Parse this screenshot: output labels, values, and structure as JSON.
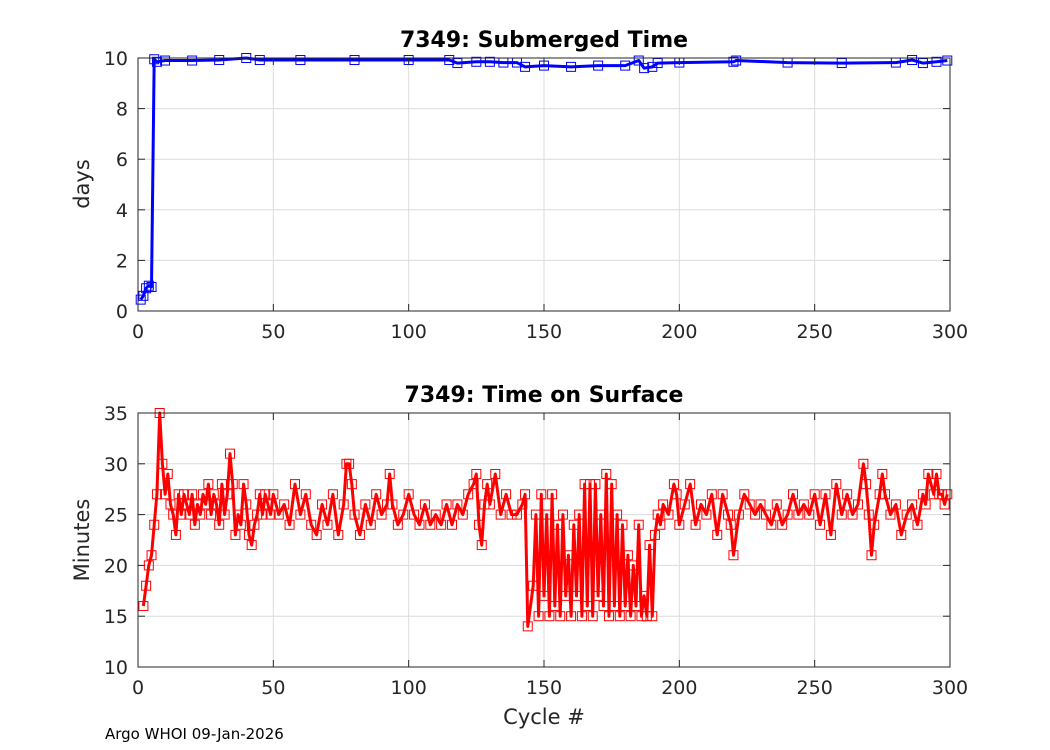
{
  "footer": "Argo WHOI 09-Jan-2026",
  "chart_data": [
    {
      "type": "line",
      "title": "7349: Submerged Time",
      "xlabel": "",
      "ylabel": "days",
      "xlim": [
        0,
        300
      ],
      "ylim": [
        0,
        10
      ],
      "xticks": [
        0,
        50,
        100,
        150,
        200,
        250,
        300
      ],
      "yticks": [
        0,
        2,
        4,
        6,
        8,
        10
      ],
      "grid": true,
      "marker": "square",
      "color": "#0000ff",
      "series": [
        {
          "points": [
            [
              1,
              0.45
            ],
            [
              2,
              0.6
            ],
            [
              3,
              0.9
            ],
            [
              4,
              1.0
            ],
            [
              5,
              0.95
            ],
            [
              6,
              9.95
            ],
            [
              7,
              9.85
            ],
            [
              10,
              9.9
            ],
            [
              20,
              9.9
            ],
            [
              30,
              9.92
            ],
            [
              40,
              10.0
            ],
            [
              45,
              9.92
            ],
            [
              60,
              9.92
            ],
            [
              80,
              9.92
            ],
            [
              100,
              9.92
            ],
            [
              115,
              9.92
            ],
            [
              118,
              9.8
            ],
            [
              125,
              9.85
            ],
            [
              130,
              9.85
            ],
            [
              135,
              9.82
            ],
            [
              140,
              9.82
            ],
            [
              143,
              9.65
            ],
            [
              150,
              9.7
            ],
            [
              160,
              9.65
            ],
            [
              170,
              9.7
            ],
            [
              180,
              9.7
            ],
            [
              185,
              9.9
            ],
            [
              187,
              9.6
            ],
            [
              190,
              9.65
            ],
            [
              192,
              9.8
            ],
            [
              200,
              9.82
            ],
            [
              220,
              9.85
            ],
            [
              221,
              9.9
            ],
            [
              240,
              9.82
            ],
            [
              260,
              9.8
            ],
            [
              280,
              9.82
            ],
            [
              286,
              9.92
            ],
            [
              290,
              9.8
            ],
            [
              295,
              9.85
            ],
            [
              299,
              9.9
            ]
          ]
        }
      ]
    },
    {
      "type": "line",
      "title": "7349: Time on Surface",
      "xlabel": "Cycle #",
      "ylabel": "Minutes",
      "xlim": [
        0,
        300
      ],
      "ylim": [
        10,
        35
      ],
      "xticks": [
        0,
        50,
        100,
        150,
        200,
        250,
        300
      ],
      "yticks": [
        10,
        15,
        20,
        25,
        30,
        35
      ],
      "grid": true,
      "marker": "square",
      "color": "#ff0000",
      "series": [
        {
          "points": [
            [
              2,
              16
            ],
            [
              3,
              18
            ],
            [
              4,
              20
            ],
            [
              5,
              21
            ],
            [
              6,
              24
            ],
            [
              7,
              27
            ],
            [
              8,
              35
            ],
            [
              9,
              30
            ],
            [
              10,
              27
            ],
            [
              11,
              29
            ],
            [
              12,
              26
            ],
            [
              13,
              25
            ],
            [
              14,
              23
            ],
            [
              15,
              27
            ],
            [
              16,
              25
            ],
            [
              17,
              27
            ],
            [
              18,
              26
            ],
            [
              19,
              25
            ],
            [
              20,
              27
            ],
            [
              21,
              24
            ],
            [
              22,
              26
            ],
            [
              23,
              25
            ],
            [
              24,
              27
            ],
            [
              25,
              26
            ],
            [
              26,
              28
            ],
            [
              27,
              25
            ],
            [
              28,
              27
            ],
            [
              29,
              26
            ],
            [
              30,
              24
            ],
            [
              31,
              28
            ],
            [
              32,
              25
            ],
            [
              33,
              27
            ],
            [
              34,
              31
            ],
            [
              35,
              28
            ],
            [
              36,
              23
            ],
            [
              37,
              25
            ],
            [
              38,
              24
            ],
            [
              39,
              28
            ],
            [
              40,
              26
            ],
            [
              41,
              23
            ],
            [
              42,
              22
            ],
            [
              43,
              24
            ],
            [
              44,
              25
            ],
            [
              45,
              27
            ],
            [
              46,
              25
            ],
            [
              47,
              27
            ],
            [
              48,
              26
            ],
            [
              49,
              25
            ],
            [
              50,
              27
            ],
            [
              52,
              25
            ],
            [
              54,
              26
            ],
            [
              56,
              24
            ],
            [
              58,
              28
            ],
            [
              60,
              25
            ],
            [
              62,
              27
            ],
            [
              64,
              24
            ],
            [
              66,
              23
            ],
            [
              68,
              26
            ],
            [
              70,
              24
            ],
            [
              72,
              27
            ],
            [
              74,
              23
            ],
            [
              76,
              26
            ],
            [
              77,
              30
            ],
            [
              78,
              30
            ],
            [
              79,
              28
            ],
            [
              80,
              25
            ],
            [
              82,
              23
            ],
            [
              84,
              26
            ],
            [
              86,
              24
            ],
            [
              88,
              27
            ],
            [
              90,
              25
            ],
            [
              92,
              26
            ],
            [
              93,
              29
            ],
            [
              94,
              26
            ],
            [
              96,
              24
            ],
            [
              98,
              25
            ],
            [
              100,
              27
            ],
            [
              102,
              25
            ],
            [
              104,
              24
            ],
            [
              106,
              26
            ],
            [
              108,
              24
            ],
            [
              110,
              25
            ],
            [
              112,
              24
            ],
            [
              114,
              26
            ],
            [
              116,
              24
            ],
            [
              118,
              26
            ],
            [
              120,
              25
            ],
            [
              122,
              27
            ],
            [
              124,
              28
            ],
            [
              125,
              29
            ],
            [
              126,
              24
            ],
            [
              127,
              22
            ],
            [
              128,
              26
            ],
            [
              129,
              28
            ],
            [
              130,
              26
            ],
            [
              132,
              29
            ],
            [
              134,
              25
            ],
            [
              136,
              27
            ],
            [
              138,
              25
            ],
            [
              140,
              25
            ],
            [
              142,
              26
            ],
            [
              143,
              27
            ],
            [
              144,
              14
            ],
            [
              146,
              18
            ],
            [
              147,
              25
            ],
            [
              148,
              15
            ],
            [
              149,
              27
            ],
            [
              150,
              17
            ],
            [
              151,
              25
            ],
            [
              152,
              15
            ],
            [
              153,
              27
            ],
            [
              154,
              16
            ],
            [
              155,
              24
            ],
            [
              156,
              15
            ],
            [
              157,
              25
            ],
            [
              158,
              17
            ],
            [
              159,
              21
            ],
            [
              160,
              15
            ],
            [
              161,
              24
            ],
            [
              162,
              17
            ],
            [
              163,
              25
            ],
            [
              164,
              15
            ],
            [
              165,
              28
            ],
            [
              166,
              16
            ],
            [
              167,
              28
            ],
            [
              168,
              15
            ],
            [
              169,
              28
            ],
            [
              170,
              17
            ],
            [
              171,
              25
            ],
            [
              172,
              16
            ],
            [
              173,
              29
            ],
            [
              174,
              15
            ],
            [
              175,
              28
            ],
            [
              176,
              16
            ],
            [
              177,
              25
            ],
            [
              178,
              15
            ],
            [
              179,
              24
            ],
            [
              180,
              16
            ],
            [
              181,
              21
            ],
            [
              182,
              15
            ],
            [
              183,
              20
            ],
            [
              184,
              16
            ],
            [
              185,
              24
            ],
            [
              186,
              15
            ],
            [
              187,
              17
            ],
            [
              188,
              15
            ],
            [
              189,
              22
            ],
            [
              190,
              15
            ],
            [
              191,
              23
            ],
            [
              192,
              25
            ],
            [
              193,
              24
            ],
            [
              194,
              26
            ],
            [
              196,
              25
            ],
            [
              198,
              28
            ],
            [
              199,
              27
            ],
            [
              200,
              24
            ],
            [
              202,
              26
            ],
            [
              204,
              28
            ],
            [
              206,
              24
            ],
            [
              208,
              26
            ],
            [
              210,
              25
            ],
            [
              212,
              27
            ],
            [
              214,
              23
            ],
            [
              216,
              27
            ],
            [
              218,
              25
            ],
            [
              219,
              24
            ],
            [
              220,
              21
            ],
            [
              222,
              25
            ],
            [
              224,
              27
            ],
            [
              226,
              26
            ],
            [
              228,
              25
            ],
            [
              230,
              26
            ],
            [
              232,
              25
            ],
            [
              234,
              24
            ],
            [
              236,
              26
            ],
            [
              238,
              24
            ],
            [
              240,
              25
            ],
            [
              242,
              27
            ],
            [
              244,
              25
            ],
            [
              246,
              26
            ],
            [
              248,
              25
            ],
            [
              250,
              27
            ],
            [
              252,
              24
            ],
            [
              254,
              27
            ],
            [
              256,
              23
            ],
            [
              258,
              28
            ],
            [
              260,
              25
            ],
            [
              262,
              27
            ],
            [
              264,
              25
            ],
            [
              266,
              26
            ],
            [
              268,
              30
            ],
            [
              269,
              28
            ],
            [
              270,
              25
            ],
            [
              271,
              21
            ],
            [
              272,
              24
            ],
            [
              274,
              27
            ],
            [
              275,
              29
            ],
            [
              276,
              27
            ],
            [
              278,
              25
            ],
            [
              280,
              26
            ],
            [
              282,
              23
            ],
            [
              284,
              25
            ],
            [
              286,
              26
            ],
            [
              288,
              24
            ],
            [
              290,
              27
            ],
            [
              291,
              26
            ],
            [
              292,
              29
            ],
            [
              294,
              27
            ],
            [
              295,
              29
            ],
            [
              296,
              27
            ],
            [
              297,
              27
            ],
            [
              298,
              26
            ],
            [
              299,
              27
            ]
          ]
        }
      ]
    }
  ]
}
